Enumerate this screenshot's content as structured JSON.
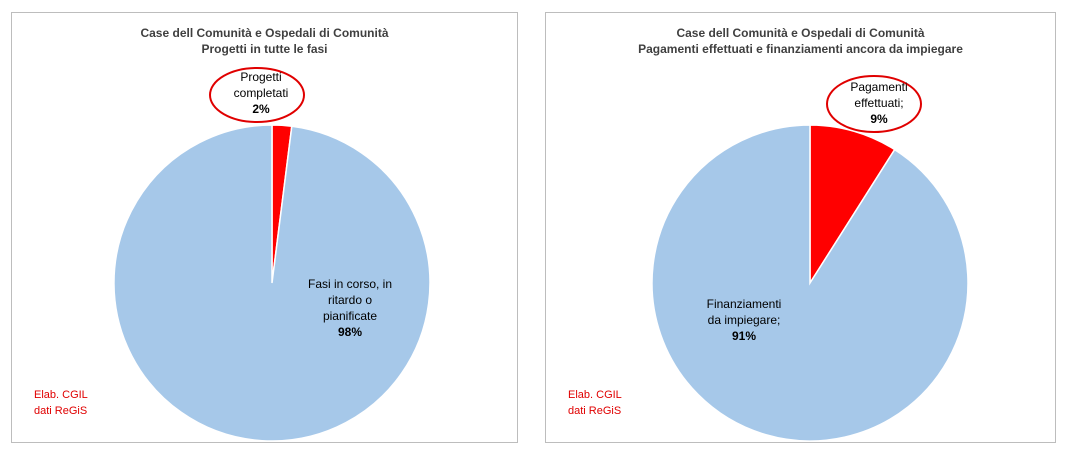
{
  "chart_data": [
    {
      "type": "pie",
      "title": "Case dell Comunità e Ospedali di Comunità",
      "subtitle": "Progetti  in tutte le fasi",
      "slices": [
        {
          "label_lines": [
            "Progetti",
            "completati"
          ],
          "value_label": "2%",
          "value": 2,
          "color": "#ff0000"
        },
        {
          "label_lines": [
            "Fasi in corso, in",
            "ritardo o",
            "pianificate"
          ],
          "value_label": "98%",
          "value": 98,
          "color": "#a6c8e9"
        }
      ],
      "source_lines": [
        "Elab. CGIL",
        "dati ReGiS"
      ]
    },
    {
      "type": "pie",
      "title": "Case dell Comunità e Ospedali di Comunità",
      "subtitle": "Pagamenti effettuati e finanziamenti ancora da impiegare",
      "slices": [
        {
          "label_lines": [
            "Pagamenti",
            "effettuati;"
          ],
          "value_label": "9%",
          "value": 9,
          "color": "#ff0000"
        },
        {
          "label_lines": [
            "Finanziamenti",
            "da impiegare;"
          ],
          "value_label": "91%",
          "value": 91,
          "color": "#a6c8e9"
        }
      ],
      "source_lines": [
        "Elab. CGIL",
        "dati ReGiS"
      ]
    }
  ]
}
